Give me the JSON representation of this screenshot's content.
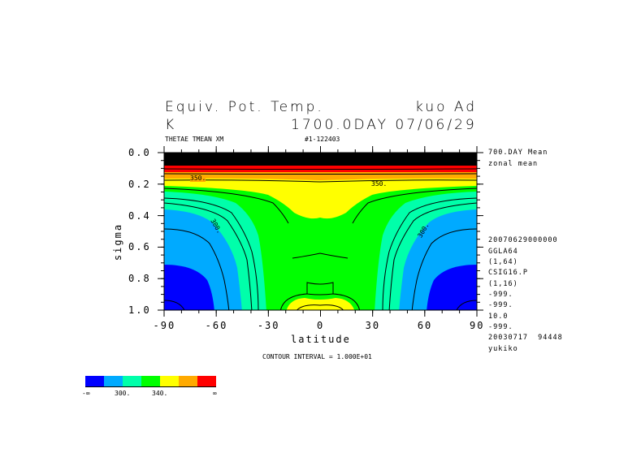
{
  "header": {
    "title_left": "Equiv. Pot. Temp.",
    "title_right": "kuo Ad",
    "units": "K",
    "time": "1700.0DAY 07/06/29",
    "variable": "THETAE TMEAN XM",
    "run_id": "#1-122403"
  },
  "side_info": [
    "700.DAY Mean",
    "zonal mean",
    "20070629000000",
    "GGLA64",
    "(1,64)",
    "CSIG16.P",
    "(1,16)",
    "-999.",
    "-999.",
    "10.0",
    "-999.",
    "20030717  94448",
    "yukiko"
  ],
  "contour_interval": "CONTOUR INTERVAL = 1.000E+01",
  "contour_labels": [
    "350.",
    "350.",
    "300.",
    "300."
  ],
  "colorbar": {
    "colors": [
      "#0000ff",
      "#00aaff",
      "#00ffaa",
      "#00ff00",
      "#ffff00",
      "#ffaa00",
      "#ff0000"
    ],
    "labels": [
      "-∞",
      "300.",
      "340.",
      "∞"
    ]
  },
  "chart_data": {
    "type": "heatmap",
    "title": "Equiv. Pot. Temp. (zonal mean)",
    "xlabel": "latitude",
    "ylabel": "sigma",
    "xlim": [
      -90,
      90
    ],
    "ylim": [
      1.0,
      0.0
    ],
    "xticks": [
      "-90",
      "-60",
      "-30",
      "0",
      "30",
      "60",
      "90"
    ],
    "yticks": [
      "0.0",
      "0.2",
      "0.4",
      "0.6",
      "0.8",
      "1.0"
    ],
    "contour_interval": 10,
    "units": "K"
  }
}
